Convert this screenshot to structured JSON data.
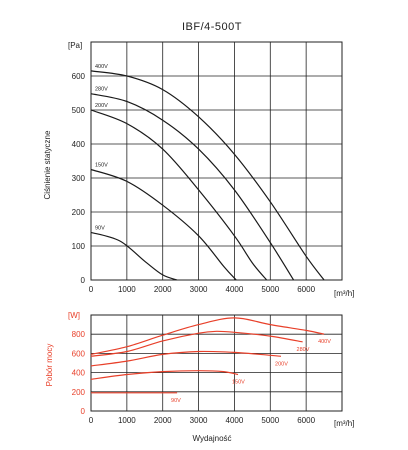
{
  "colors": {
    "pressure_curve": "#1a1a1a",
    "power_curve": "#e8402a",
    "grid": "#222222",
    "frame": "#222222"
  },
  "chart_data": [
    {
      "type": "line",
      "title": "IBF/4-500T",
      "ylabel": "Ciśnienie statyczne",
      "y_unit": "[Pa]",
      "x_unit": "[m³/h]",
      "xlim": [
        0,
        7000
      ],
      "ylim": [
        0,
        700
      ],
      "x_ticks": [
        "0",
        "1000",
        "2000",
        "3000",
        "4000",
        "5000",
        "6000"
      ],
      "y_ticks": [
        "0",
        "100",
        "200",
        "300",
        "400",
        "500",
        "600"
      ],
      "grid": true,
      "series": [
        {
          "name": "400V",
          "x": [
            0,
            1000,
            2000,
            3000,
            4000,
            5000,
            6000,
            6500
          ],
          "y": [
            615,
            600,
            560,
            480,
            370,
            230,
            70,
            0
          ]
        },
        {
          "name": "280V",
          "x": [
            0,
            1000,
            2000,
            3000,
            4000,
            5000,
            5650
          ],
          "y": [
            548,
            525,
            470,
            385,
            265,
            110,
            0
          ]
        },
        {
          "name": "200V",
          "x": [
            0,
            1000,
            2000,
            3000,
            4000,
            4500,
            4900
          ],
          "y": [
            500,
            460,
            385,
            265,
            130,
            50,
            0
          ]
        },
        {
          "name": "150V",
          "x": [
            0,
            1000,
            2000,
            3000,
            3700,
            4050
          ],
          "y": [
            325,
            290,
            220,
            130,
            40,
            0
          ]
        },
        {
          "name": "90V",
          "x": [
            0,
            800,
            1500,
            2000,
            2400
          ],
          "y": [
            140,
            115,
            55,
            15,
            0
          ]
        }
      ]
    },
    {
      "type": "line",
      "ylabel": "Pobór mocy",
      "y_unit": "[W]",
      "x_unit": "[m³/h]",
      "xlabel": "Wydajność",
      "xlim": [
        0,
        7000
      ],
      "ylim": [
        0,
        1000
      ],
      "x_ticks": [
        "0",
        "1000",
        "2000",
        "3000",
        "4000",
        "5000",
        "6000"
      ],
      "y_ticks": [
        "0",
        "200",
        "400",
        "600",
        "800"
      ],
      "grid": true,
      "series": [
        {
          "name": "400V",
          "x": [
            0,
            1000,
            2000,
            3000,
            4000,
            5000,
            6000,
            6500
          ],
          "y": [
            590,
            670,
            790,
            900,
            970,
            900,
            840,
            800
          ]
        },
        {
          "name": "280V",
          "x": [
            0,
            1000,
            2000,
            3000,
            3500,
            4000,
            5000,
            5900
          ],
          "y": [
            570,
            620,
            730,
            810,
            830,
            820,
            780,
            720
          ]
        },
        {
          "name": "200V",
          "x": [
            0,
            1000,
            2000,
            3000,
            4000,
            5000,
            5300
          ],
          "y": [
            470,
            520,
            590,
            620,
            610,
            580,
            570
          ]
        },
        {
          "name": "150V",
          "x": [
            0,
            1000,
            2000,
            3000,
            3700,
            4100
          ],
          "y": [
            330,
            380,
            410,
            420,
            410,
            380
          ]
        },
        {
          "name": "90V",
          "x": [
            0,
            1000,
            2000,
            2400
          ],
          "y": [
            190,
            190,
            190,
            190
          ]
        }
      ]
    }
  ]
}
